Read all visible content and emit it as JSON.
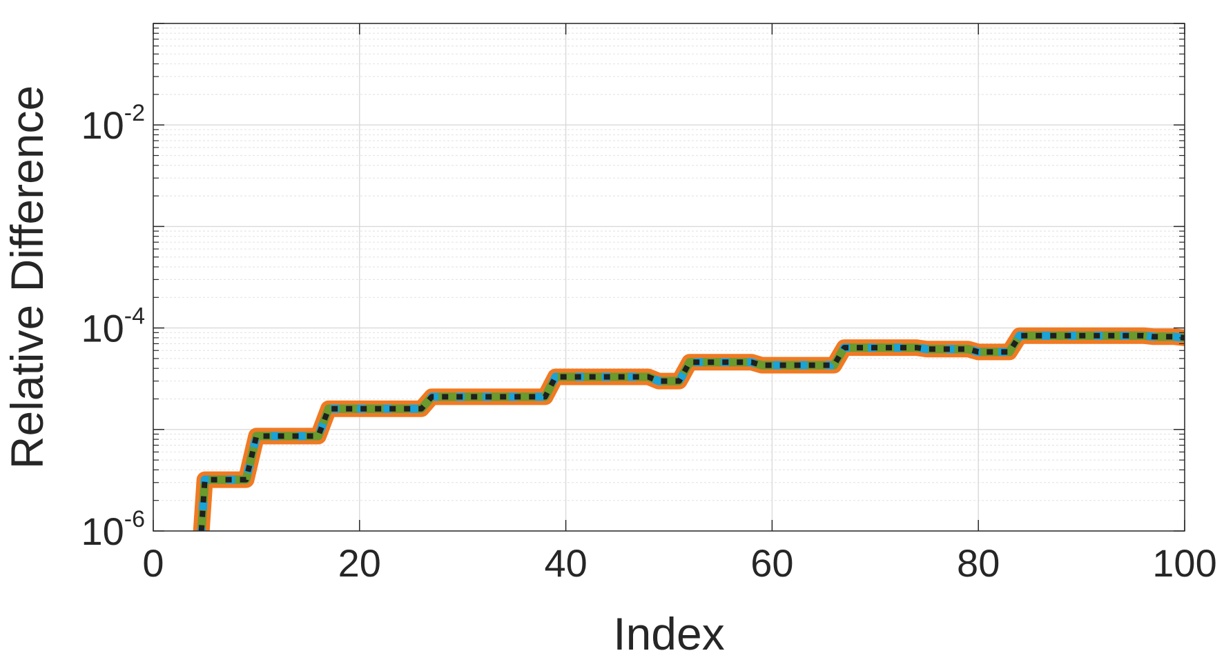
{
  "chart_data": {
    "type": "line",
    "title": "",
    "xlabel": "Index",
    "ylabel": "Relative Difference",
    "xlim": [
      0,
      100
    ],
    "ylim": [
      1e-06,
      0.1
    ],
    "yscale": "log",
    "grid": true,
    "minor_grid": true,
    "legend": "none",
    "x_ticks": [
      {
        "value": 0,
        "label": "0"
      },
      {
        "value": 20,
        "label": "20"
      },
      {
        "value": 40,
        "label": "40"
      },
      {
        "value": 60,
        "label": "60"
      },
      {
        "value": 80,
        "label": "80"
      },
      {
        "value": 100,
        "label": "100"
      }
    ],
    "y_ticks": [
      {
        "value": 1e-06,
        "base": "10",
        "exponent": "-6"
      },
      {
        "value": 0.0001,
        "base": "10",
        "exponent": "-4"
      },
      {
        "value": 0.01,
        "base": "10",
        "exponent": "-2"
      }
    ],
    "x": [
      4,
      5,
      6,
      7,
      8,
      9,
      10,
      11,
      12,
      13,
      14,
      15,
      16,
      17,
      18,
      19,
      20,
      21,
      22,
      23,
      24,
      25,
      26,
      27,
      28,
      29,
      30,
      31,
      32,
      33,
      34,
      35,
      36,
      37,
      38,
      39,
      40,
      41,
      42,
      43,
      44,
      45,
      46,
      47,
      48,
      49,
      50,
      51,
      52,
      53,
      54,
      55,
      56,
      57,
      58,
      59,
      60,
      61,
      62,
      63,
      64,
      65,
      66,
      67,
      68,
      69,
      70,
      71,
      72,
      73,
      74,
      75,
      76,
      77,
      78,
      79,
      80,
      81,
      82,
      83,
      84,
      85,
      86,
      87,
      88,
      89,
      90,
      91,
      92,
      93,
      94,
      95,
      96,
      97,
      98,
      99,
      100
    ],
    "series": [
      {
        "color": "#f07a23",
        "style": "solid-wide",
        "values": [
          1e-07,
          3.2e-06,
          3.2e-06,
          3.2e-06,
          3.2e-06,
          3.2e-06,
          8.6e-06,
          8.6e-06,
          8.6e-06,
          8.6e-06,
          8.6e-06,
          8.6e-06,
          8.6e-06,
          1.6e-05,
          1.6e-05,
          1.6e-05,
          1.6e-05,
          1.6e-05,
          1.6e-05,
          1.6e-05,
          1.6e-05,
          1.6e-05,
          1.6e-05,
          2.1e-05,
          2.1e-05,
          2.1e-05,
          2.1e-05,
          2.1e-05,
          2.1e-05,
          2.1e-05,
          2.1e-05,
          2.1e-05,
          2.1e-05,
          2.1e-05,
          2.1e-05,
          3.3e-05,
          3.3e-05,
          3.3e-05,
          3.3e-05,
          3.3e-05,
          3.3e-05,
          3.3e-05,
          3.3e-05,
          3.3e-05,
          3.3e-05,
          3e-05,
          3e-05,
          3e-05,
          4.6e-05,
          4.6e-05,
          4.6e-05,
          4.6e-05,
          4.6e-05,
          4.6e-05,
          4.6e-05,
          4.3e-05,
          4.3e-05,
          4.3e-05,
          4.3e-05,
          4.3e-05,
          4.3e-05,
          4.3e-05,
          4.3e-05,
          6.4e-05,
          6.4e-05,
          6.4e-05,
          6.4e-05,
          6.4e-05,
          6.4e-05,
          6.4e-05,
          6.4e-05,
          6.2e-05,
          6.2e-05,
          6.2e-05,
          6.2e-05,
          6.2e-05,
          5.8e-05,
          5.8e-05,
          5.8e-05,
          5.8e-05,
          8.4e-05,
          8.4e-05,
          8.4e-05,
          8.4e-05,
          8.4e-05,
          8.4e-05,
          8.4e-05,
          8.4e-05,
          8.4e-05,
          8.4e-05,
          8.4e-05,
          8.4e-05,
          8.4e-05,
          8.2e-05,
          8.2e-05,
          8.2e-05,
          8e-05
        ]
      },
      {
        "color": "#1aa3d6",
        "style": "solid-medium",
        "values": [
          1e-07,
          3.2e-06,
          3.2e-06,
          3.2e-06,
          3.2e-06,
          3.2e-06,
          8.6e-06,
          8.6e-06,
          8.6e-06,
          8.6e-06,
          8.6e-06,
          8.6e-06,
          8.6e-06,
          1.6e-05,
          1.6e-05,
          1.6e-05,
          1.6e-05,
          1.6e-05,
          1.6e-05,
          1.6e-05,
          1.6e-05,
          1.6e-05,
          1.6e-05,
          2.1e-05,
          2.1e-05,
          2.1e-05,
          2.1e-05,
          2.1e-05,
          2.1e-05,
          2.1e-05,
          2.1e-05,
          2.1e-05,
          2.1e-05,
          2.1e-05,
          2.1e-05,
          3.3e-05,
          3.3e-05,
          3.3e-05,
          3.3e-05,
          3.3e-05,
          3.3e-05,
          3.3e-05,
          3.3e-05,
          3.3e-05,
          3.3e-05,
          3e-05,
          3e-05,
          3e-05,
          4.6e-05,
          4.6e-05,
          4.6e-05,
          4.6e-05,
          4.6e-05,
          4.6e-05,
          4.6e-05,
          4.3e-05,
          4.3e-05,
          4.3e-05,
          4.3e-05,
          4.3e-05,
          4.3e-05,
          4.3e-05,
          4.3e-05,
          6.4e-05,
          6.4e-05,
          6.4e-05,
          6.4e-05,
          6.4e-05,
          6.4e-05,
          6.4e-05,
          6.4e-05,
          6.2e-05,
          6.2e-05,
          6.2e-05,
          6.2e-05,
          6.2e-05,
          5.8e-05,
          5.8e-05,
          5.8e-05,
          5.8e-05,
          8.4e-05,
          8.4e-05,
          8.4e-05,
          8.4e-05,
          8.4e-05,
          8.4e-05,
          8.4e-05,
          8.4e-05,
          8.4e-05,
          8.4e-05,
          8.4e-05,
          8.4e-05,
          8.4e-05,
          8.2e-05,
          8.2e-05,
          8.2e-05,
          8e-05
        ]
      },
      {
        "color": "#6b9a2e",
        "style": "dashed",
        "values": [
          1e-07,
          3.2e-06,
          3.2e-06,
          3.2e-06,
          3.2e-06,
          3.2e-06,
          8.6e-06,
          8.6e-06,
          8.6e-06,
          8.6e-06,
          8.6e-06,
          8.6e-06,
          8.6e-06,
          1.6e-05,
          1.6e-05,
          1.6e-05,
          1.6e-05,
          1.6e-05,
          1.6e-05,
          1.6e-05,
          1.6e-05,
          1.6e-05,
          1.6e-05,
          2.1e-05,
          2.1e-05,
          2.1e-05,
          2.1e-05,
          2.1e-05,
          2.1e-05,
          2.1e-05,
          2.1e-05,
          2.1e-05,
          2.1e-05,
          2.1e-05,
          2.1e-05,
          3.3e-05,
          3.3e-05,
          3.3e-05,
          3.3e-05,
          3.3e-05,
          3.3e-05,
          3.3e-05,
          3.3e-05,
          3.3e-05,
          3.3e-05,
          3e-05,
          3e-05,
          3e-05,
          4.6e-05,
          4.6e-05,
          4.6e-05,
          4.6e-05,
          4.6e-05,
          4.6e-05,
          4.6e-05,
          4.3e-05,
          4.3e-05,
          4.3e-05,
          4.3e-05,
          4.3e-05,
          4.3e-05,
          4.3e-05,
          4.3e-05,
          6.4e-05,
          6.4e-05,
          6.4e-05,
          6.4e-05,
          6.4e-05,
          6.4e-05,
          6.4e-05,
          6.4e-05,
          6.2e-05,
          6.2e-05,
          6.2e-05,
          6.2e-05,
          6.2e-05,
          5.8e-05,
          5.8e-05,
          5.8e-05,
          5.8e-05,
          8.4e-05,
          8.4e-05,
          8.4e-05,
          8.4e-05,
          8.4e-05,
          8.4e-05,
          8.4e-05,
          8.4e-05,
          8.4e-05,
          8.4e-05,
          8.4e-05,
          8.4e-05,
          8.4e-05,
          8.2e-05,
          8.2e-05,
          8.2e-05,
          8e-05
        ]
      },
      {
        "color": "#1f1f1f",
        "style": "dotted",
        "values": [
          1e-07,
          3.2e-06,
          3.2e-06,
          3.2e-06,
          3.2e-06,
          3.2e-06,
          8.6e-06,
          8.6e-06,
          8.6e-06,
          8.6e-06,
          8.6e-06,
          8.6e-06,
          8.6e-06,
          1.6e-05,
          1.6e-05,
          1.6e-05,
          1.6e-05,
          1.6e-05,
          1.6e-05,
          1.6e-05,
          1.6e-05,
          1.6e-05,
          1.6e-05,
          2.1e-05,
          2.1e-05,
          2.1e-05,
          2.1e-05,
          2.1e-05,
          2.1e-05,
          2.1e-05,
          2.1e-05,
          2.1e-05,
          2.1e-05,
          2.1e-05,
          2.1e-05,
          3.3e-05,
          3.3e-05,
          3.3e-05,
          3.3e-05,
          3.3e-05,
          3.3e-05,
          3.3e-05,
          3.3e-05,
          3.3e-05,
          3.3e-05,
          3e-05,
          3e-05,
          3e-05,
          4.6e-05,
          4.6e-05,
          4.6e-05,
          4.6e-05,
          4.6e-05,
          4.6e-05,
          4.6e-05,
          4.3e-05,
          4.3e-05,
          4.3e-05,
          4.3e-05,
          4.3e-05,
          4.3e-05,
          4.3e-05,
          4.3e-05,
          6.4e-05,
          6.4e-05,
          6.4e-05,
          6.4e-05,
          6.4e-05,
          6.4e-05,
          6.4e-05,
          6.4e-05,
          6.2e-05,
          6.2e-05,
          6.2e-05,
          6.2e-05,
          6.2e-05,
          5.8e-05,
          5.8e-05,
          5.8e-05,
          5.8e-05,
          8.4e-05,
          8.4e-05,
          8.4e-05,
          8.4e-05,
          8.4e-05,
          8.4e-05,
          8.4e-05,
          8.4e-05,
          8.4e-05,
          8.4e-05,
          8.4e-05,
          8.4e-05,
          8.4e-05,
          8.2e-05,
          8.2e-05,
          8.2e-05,
          8e-05
        ]
      }
    ]
  }
}
